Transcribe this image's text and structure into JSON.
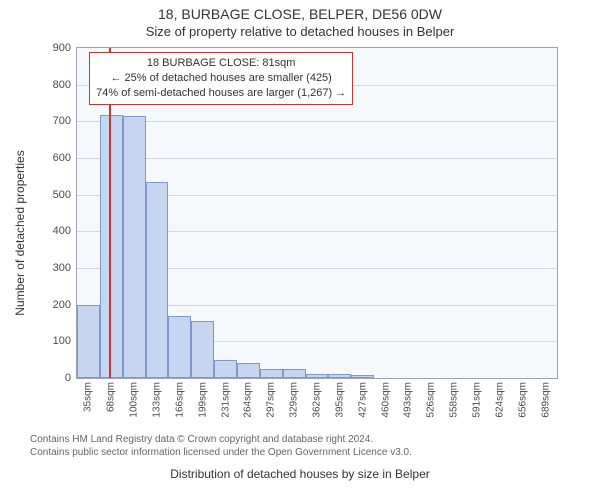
{
  "titles": {
    "main": "18, BURBAGE CLOSE, BELPER, DE56 0DW",
    "sub": "Size of property relative to detached houses in Belper"
  },
  "chart": {
    "type": "histogram",
    "background_color": "#f6f9fc",
    "grid_color": "#d0d7e2",
    "border_color": "#9aa4b2",
    "bar_fill": "#c7d6f0",
    "bar_border": "#7e98c9",
    "refline_color": "#cc3333",
    "ylabel": "Number of detached properties",
    "xlabel": "Distribution of detached houses by size in Belper",
    "ylim": [
      0,
      900
    ],
    "ytick_step": 100,
    "x_start": 35,
    "x_step": 32.7,
    "x_unit": "sqm",
    "x_tick_count": 21,
    "values": [
      200,
      718,
      715,
      535,
      170,
      155,
      50,
      40,
      25,
      25,
      10,
      10,
      8,
      0,
      0,
      0,
      0,
      0,
      0,
      0,
      0
    ],
    "reference_x_sqm": 81,
    "callout": {
      "line1": "18 BURBAGE CLOSE: 81sqm",
      "line2": "← 25% of detached houses are smaller (425)",
      "line3": "74% of semi-detached houses are larger (1,267) →"
    }
  },
  "footer": {
    "line1": "Contains HM Land Registry data © Crown copyright and database right 2024.",
    "line2": "Contains public sector information licensed under the Open Government Licence v3.0."
  }
}
